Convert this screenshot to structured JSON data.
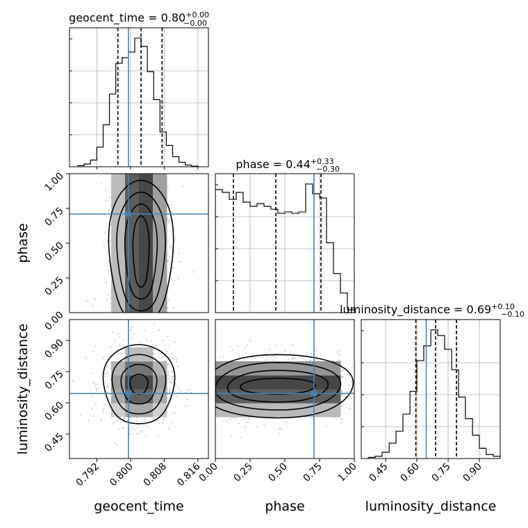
{
  "chart_data": {
    "type": "corner",
    "parameters": [
      "geocent_time",
      "phase",
      "luminosity_distance"
    ],
    "axis_labels": {
      "geocent_time": "geocent_time",
      "phase": "phase",
      "luminosity_distance": "luminosity_distance"
    },
    "ranges": {
      "geocent_time": [
        0.7855,
        0.8185
      ],
      "phase": [
        0.0,
        1.0
      ],
      "luminosity_distance": [
        0.333,
        1.0
      ]
    },
    "ticks": {
      "geocent_time": [
        0.792,
        0.8,
        0.808,
        0.816
      ],
      "phase": [
        0.0,
        0.25,
        0.5,
        0.75,
        1.0
      ],
      "luminosity_distance": [
        0.45,
        0.6,
        0.75,
        0.9
      ]
    },
    "tick_labels": {
      "geocent_time": [
        "0.792",
        "0.800",
        "0.808",
        "0.816"
      ],
      "phase": [
        "0.00",
        "0.25",
        "0.50",
        "0.75",
        "1.00"
      ],
      "luminosity_distance": [
        "0.45",
        "0.60",
        "0.75",
        "0.90"
      ]
    },
    "row_tick_labels": {
      "phase": [
        "0.25",
        "0.50",
        "0.75",
        "1.00"
      ],
      "luminosity_distance": [
        "0.45",
        "0.60",
        "0.75",
        "0.90"
      ]
    },
    "row_tick_values": {
      "phase": [
        0.25,
        0.5,
        0.75,
        1.0
      ],
      "luminosity_distance": [
        0.45,
        0.6,
        0.75,
        0.9
      ]
    },
    "extra_corner_label": "0.00",
    "truths": {
      "geocent_time": 0.7995,
      "phase": 0.71,
      "luminosity_distance": 0.645
    },
    "titles": {
      "geocent_time": {
        "name": "geocent_time",
        "median": "0.80",
        "plus": "+0.00",
        "minus": "−0.00"
      },
      "phase": {
        "name": "phase",
        "median": "0.44",
        "plus": "+0.33",
        "minus": "−0.30"
      },
      "luminosity_distance": {
        "name": "luminosity_distance",
        "median": "0.69",
        "plus": "+0.10",
        "minus": "−0.10"
      }
    },
    "quantiles": {
      "geocent_time": [
        0.797,
        0.8025,
        0.8075
      ],
      "phase": [
        0.13,
        0.435,
        0.76
      ],
      "luminosity_distance": [
        0.595,
        0.69,
        0.79
      ]
    },
    "histograms": {
      "geocent_time": {
        "edges": [
          0.7875,
          0.789,
          0.7905,
          0.792,
          0.7935,
          0.795,
          0.7965,
          0.798,
          0.7995,
          0.801,
          0.8025,
          0.804,
          0.8055,
          0.807,
          0.8085,
          0.81,
          0.8115,
          0.813,
          0.8145,
          0.816
        ],
        "counts": [
          2,
          5,
          12,
          35,
          75,
          130,
          185,
          195,
          205,
          230,
          215,
          170,
          120,
          62,
          38,
          18,
          8,
          3,
          1
        ]
      },
      "phase": {
        "edges": [
          0.0,
          0.05,
          0.1,
          0.15,
          0.2,
          0.25,
          0.3,
          0.35,
          0.4,
          0.45,
          0.5,
          0.55,
          0.6,
          0.65,
          0.7,
          0.75,
          0.8,
          0.85,
          0.9,
          0.95,
          1.0
        ],
        "counts": [
          88,
          86,
          81,
          86,
          79,
          76,
          78,
          76,
          74,
          71,
          72,
          71,
          72,
          92,
          85,
          82,
          50,
          28,
          14,
          2
        ]
      },
      "luminosity_distance": {
        "edges": [
          0.367,
          0.4,
          0.433,
          0.467,
          0.5,
          0.533,
          0.567,
          0.6,
          0.633,
          0.667,
          0.7,
          0.733,
          0.767,
          0.8,
          0.833,
          0.867,
          0.9,
          0.933,
          0.967,
          1.0
        ],
        "counts": [
          2,
          4,
          11,
          27,
          48,
          78,
          118,
          172,
          198,
          226,
          216,
          192,
          156,
          108,
          70,
          41,
          18,
          7,
          4
        ]
      }
    },
    "pairs": [
      {
        "x": "geocent_time",
        "y": "phase",
        "center": [
          0.8025,
          0.44
        ],
        "sigma": [
          0.0038,
          0.27
        ]
      },
      {
        "x": "geocent_time",
        "y": "luminosity_distance",
        "center": [
          0.802,
          0.69
        ],
        "sigma": [
          0.0042,
          0.1
        ]
      },
      {
        "x": "phase",
        "y": "luminosity_distance",
        "center": [
          0.45,
          0.68
        ],
        "sigma": [
          0.29,
          0.08
        ]
      }
    ]
  },
  "colors": {
    "truth": "#4682b4",
    "line": "#000000",
    "grid": "#b0b0b0",
    "sample": "#9a9a9a"
  }
}
